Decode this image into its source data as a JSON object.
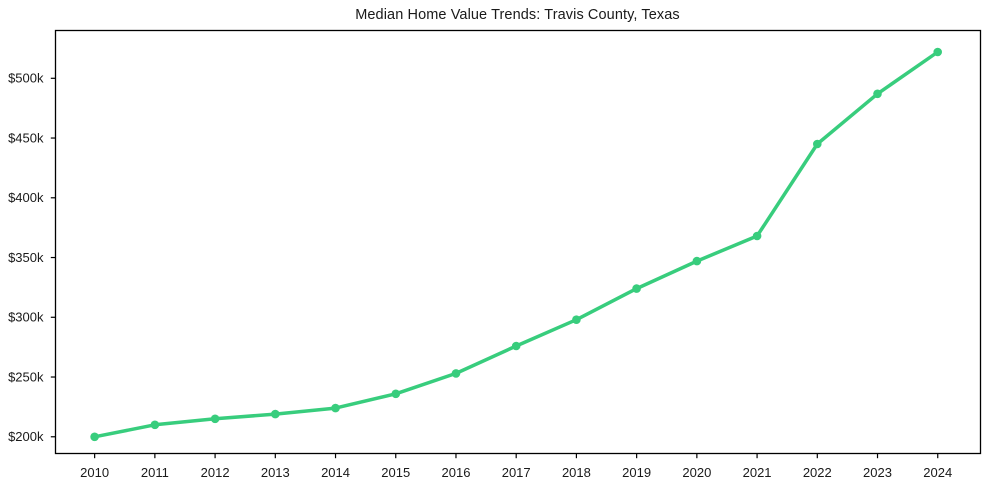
{
  "title": "Median Home Value Trends: Travis County, Texas",
  "colors": {
    "line": "#38cd7d",
    "marker": "#38cd7d",
    "spine": "#000000",
    "text": "#1a1a1a",
    "background": "#ffffff"
  },
  "chart_data": {
    "type": "line",
    "title": "Median Home Value Trends: Travis County, Texas",
    "xlabel": "",
    "ylabel": "",
    "x": [
      2010,
      2011,
      2012,
      2013,
      2014,
      2015,
      2016,
      2017,
      2018,
      2019,
      2020,
      2021,
      2022,
      2023,
      2024
    ],
    "series": [
      {
        "name": "Median Home Value",
        "values": [
          200000,
          210000,
          215000,
          219000,
          224000,
          236000,
          253000,
          276000,
          298000,
          324000,
          347000,
          368000,
          445000,
          487000,
          522000
        ]
      }
    ],
    "xlim": [
      2009.35,
      2024.71
    ],
    "ylim": [
      186000,
      540000
    ],
    "yticks": {
      "values": [
        200000,
        250000,
        300000,
        350000,
        400000,
        450000,
        500000
      ],
      "labels": [
        "$200k",
        "$250k",
        "$300k",
        "$350k",
        "$400k",
        "$450k",
        "$500k"
      ]
    },
    "xticks": {
      "values": [
        2010,
        2011,
        2012,
        2013,
        2014,
        2015,
        2016,
        2017,
        2018,
        2019,
        2020,
        2021,
        2022,
        2023,
        2024
      ],
      "labels": [
        "2010",
        "2011",
        "2012",
        "2013",
        "2014",
        "2015",
        "2016",
        "2017",
        "2018",
        "2019",
        "2020",
        "2021",
        "2022",
        "2023",
        "2024"
      ]
    },
    "grid": false,
    "legend": "none",
    "marker": "circle",
    "line_width": 3.5,
    "marker_radius": 4.3
  }
}
